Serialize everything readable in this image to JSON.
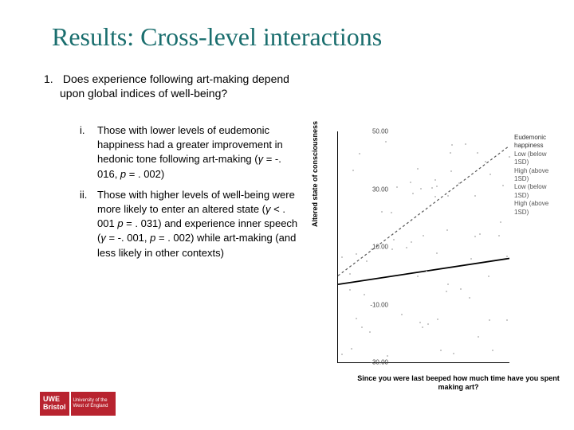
{
  "title": "Results: Cross-level interactions",
  "question": {
    "num": "1.",
    "text": "Does experience following art-making depend upon global indices of well-being?"
  },
  "items": [
    {
      "rn": "i.",
      "text_pre": "Those with lower levels of eudemonic happiness had a greater improvement in hedonic tone following art-making (",
      "gamma": "γ",
      "eq1": " = -. 016, ",
      "p": "p",
      "eq2": " = . 002)"
    },
    {
      "rn": "ii.",
      "text_pre": "Those with higher levels of well-being were more likely to enter an altered state (",
      "gamma": "γ",
      "eq1": " < . 001 ",
      "p": "p",
      "eq2": " = . 031) and experience inner speech (",
      "gamma2": "γ",
      "eq3": " = -. 001, ",
      "p2": "p",
      "eq4": " = . 002) while art-making (and less likely in other contexts)"
    }
  ],
  "chart": {
    "type": "scatter-with-lines",
    "y_label": "Altered state of consciousness",
    "x_label": "Since you were last beeped how much time have you spent making art?",
    "ylim": [
      -30,
      50
    ],
    "yticks": [
      {
        "v": 50,
        "label": "50.00"
      },
      {
        "v": 30,
        "label": "30.00"
      },
      {
        "v": 10,
        "label": "10.00"
      },
      {
        "v": -10,
        "label": "-10.00"
      },
      {
        "v": -30,
        "label": "-30.00"
      }
    ],
    "legend_title": "Eudemonic happiness",
    "legend_items": [
      "Low (below 1SD)",
      "High (above 1SD)",
      "Low (below 1SD)",
      "High (above 1SD)"
    ],
    "lines": [
      {
        "color": "#555555",
        "width": 1.2,
        "dash": "3,3",
        "x1": 0,
        "y1": 0,
        "x2": 1,
        "y2": 45
      },
      {
        "color": "#000000",
        "width": 1.8,
        "dash": "",
        "x1": 0,
        "y1": -3,
        "x2": 1,
        "y2": 6
      }
    ],
    "scatter_color": "#bbbbbb",
    "background_color": "#ffffff",
    "n_dots": 70
  },
  "logo": {
    "line1": "UWE",
    "line2": "Bristol",
    "sub": "University of the West of England"
  }
}
